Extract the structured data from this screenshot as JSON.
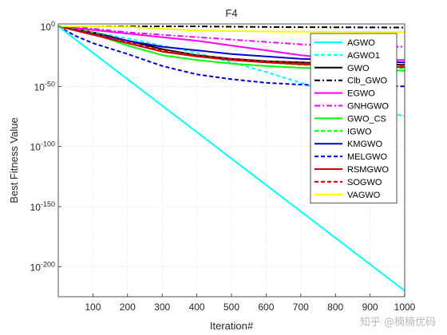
{
  "chart_data": {
    "type": "line",
    "title": "F4",
    "xlabel": "Iteration#",
    "ylabel": "Best Fitness Value",
    "y_scale": "log10",
    "xlim": [
      0,
      1000
    ],
    "ylim_log10": [
      -225,
      2
    ],
    "xticks": [
      100,
      200,
      300,
      400,
      500,
      600,
      700,
      800,
      900,
      1000
    ],
    "yticks": [
      {
        "exp": 0,
        "base": "10",
        "sup": "0"
      },
      {
        "exp": -50,
        "base": "10",
        "sup": "-50"
      },
      {
        "exp": -100,
        "base": "10",
        "sup": "-100"
      },
      {
        "exp": -150,
        "base": "10",
        "sup": "-150"
      },
      {
        "exp": -200,
        "base": "10",
        "sup": "-200"
      }
    ],
    "grid": true,
    "legend_position": "top-right",
    "series": [
      {
        "name": "AGWO",
        "color": "#00ffff",
        "dash": "solid",
        "x": [
          0,
          100,
          200,
          400,
          600,
          800,
          1000
        ],
        "log10_y": [
          0,
          -22,
          -44,
          -88,
          -132,
          -176,
          -220
        ]
      },
      {
        "name": "AGWO1",
        "color": "#00ffff",
        "dash": "dashed",
        "x": [
          0,
          100,
          200,
          300,
          400,
          500,
          600,
          700,
          800,
          900,
          1000
        ],
        "log10_y": [
          0,
          -5,
          -10,
          -16,
          -22,
          -30,
          -38,
          -47,
          -57,
          -67,
          -75
        ]
      },
      {
        "name": "GWO",
        "color": "#000000",
        "dash": "solid",
        "x": [
          0,
          100,
          200,
          300,
          400,
          500,
          600,
          700,
          800,
          900,
          1000
        ],
        "log10_y": [
          0,
          -5,
          -12,
          -19,
          -24,
          -27,
          -29,
          -30,
          -31,
          -31.5,
          -32
        ]
      },
      {
        "name": "Clb_GWO",
        "color": "#000000",
        "dash": "dashdot",
        "x": [
          0,
          100,
          200,
          300,
          400,
          500,
          600,
          700,
          800,
          900,
          1000
        ],
        "log10_y": [
          0,
          0,
          0,
          0,
          0,
          -0.3,
          -0.5,
          -0.7,
          -0.8,
          -0.9,
          -1
        ]
      },
      {
        "name": "EGWO",
        "color": "#ff00ff",
        "dash": "solid",
        "x": [
          0,
          100,
          200,
          300,
          400,
          500,
          600,
          700,
          800,
          900,
          1000
        ],
        "log10_y": [
          0,
          -3,
          -6,
          -9,
          -12,
          -16,
          -20,
          -24,
          -27,
          -28,
          -28
        ]
      },
      {
        "name": "GNHGWO",
        "color": "#ff00ff",
        "dash": "dashdot",
        "x": [
          0,
          100,
          200,
          300,
          400,
          500,
          600,
          700,
          800,
          900,
          1000
        ],
        "log10_y": [
          0,
          -2,
          -5,
          -7,
          -9,
          -11,
          -13,
          -15,
          -16.5,
          -17,
          -17
        ]
      },
      {
        "name": "GWO_CS",
        "color": "#00ff00",
        "dash": "solid",
        "x": [
          0,
          100,
          200,
          300,
          400,
          500,
          600,
          700,
          800,
          900,
          1000
        ],
        "log10_y": [
          0,
          -6,
          -16,
          -24,
          -28,
          -31,
          -33,
          -34.5,
          -35.5,
          -36,
          -37
        ]
      },
      {
        "name": "IGWO",
        "color": "#00ff00",
        "dash": "dashed",
        "x": [
          0,
          100,
          200,
          300,
          400,
          500,
          600,
          700,
          800,
          900,
          1000
        ],
        "log10_y": [
          0,
          -5,
          -13,
          -20,
          -25,
          -28,
          -30,
          -32,
          -33,
          -34,
          -35
        ]
      },
      {
        "name": "KMGWO",
        "color": "#0000cd",
        "dash": "solid",
        "x": [
          0,
          100,
          200,
          300,
          400,
          500,
          600,
          700,
          800,
          900,
          1000
        ],
        "log10_y": [
          0,
          -6,
          -12,
          -17,
          -20,
          -23,
          -25,
          -27,
          -28,
          -29,
          -30
        ]
      },
      {
        "name": "MELGWO",
        "color": "#0000cd",
        "dash": "dashed",
        "x": [
          0,
          50,
          100,
          200,
          300,
          400,
          500,
          600,
          700,
          800,
          900,
          1000
        ],
        "log10_y": [
          0,
          -8,
          -14,
          -23,
          -33,
          -40,
          -44,
          -47,
          -48.5,
          -49.5,
          -50,
          -50
        ]
      },
      {
        "name": "RSMGWO",
        "color": "#cc0000",
        "dash": "solid",
        "x": [
          0,
          100,
          200,
          300,
          400,
          500,
          600,
          700,
          800,
          900,
          1000
        ],
        "log10_y": [
          0,
          -7,
          -14,
          -21,
          -25,
          -28,
          -30,
          -31.5,
          -32.5,
          -33,
          -34
        ]
      },
      {
        "name": "SOGWO",
        "color": "#cc0000",
        "dash": "dashed",
        "x": [
          0,
          100,
          200,
          300,
          400,
          500,
          600,
          700,
          800,
          900,
          1000
        ],
        "log10_y": [
          0,
          -6,
          -13,
          -20,
          -24,
          -27,
          -29,
          -30.5,
          -31.5,
          -32,
          -32.5
        ]
      },
      {
        "name": "VAGWO",
        "color": "#ffff00",
        "dash": "solid",
        "x": [
          0,
          100,
          200,
          300,
          400,
          500,
          600,
          700,
          800,
          900,
          1000
        ],
        "log10_y": [
          0,
          0,
          -0.5,
          -2,
          -3.5,
          -4,
          -4.3,
          -4.5,
          -4.6,
          -4.7,
          -4.8
        ]
      }
    ]
  },
  "watermark": "知乎 @楠楠优码"
}
